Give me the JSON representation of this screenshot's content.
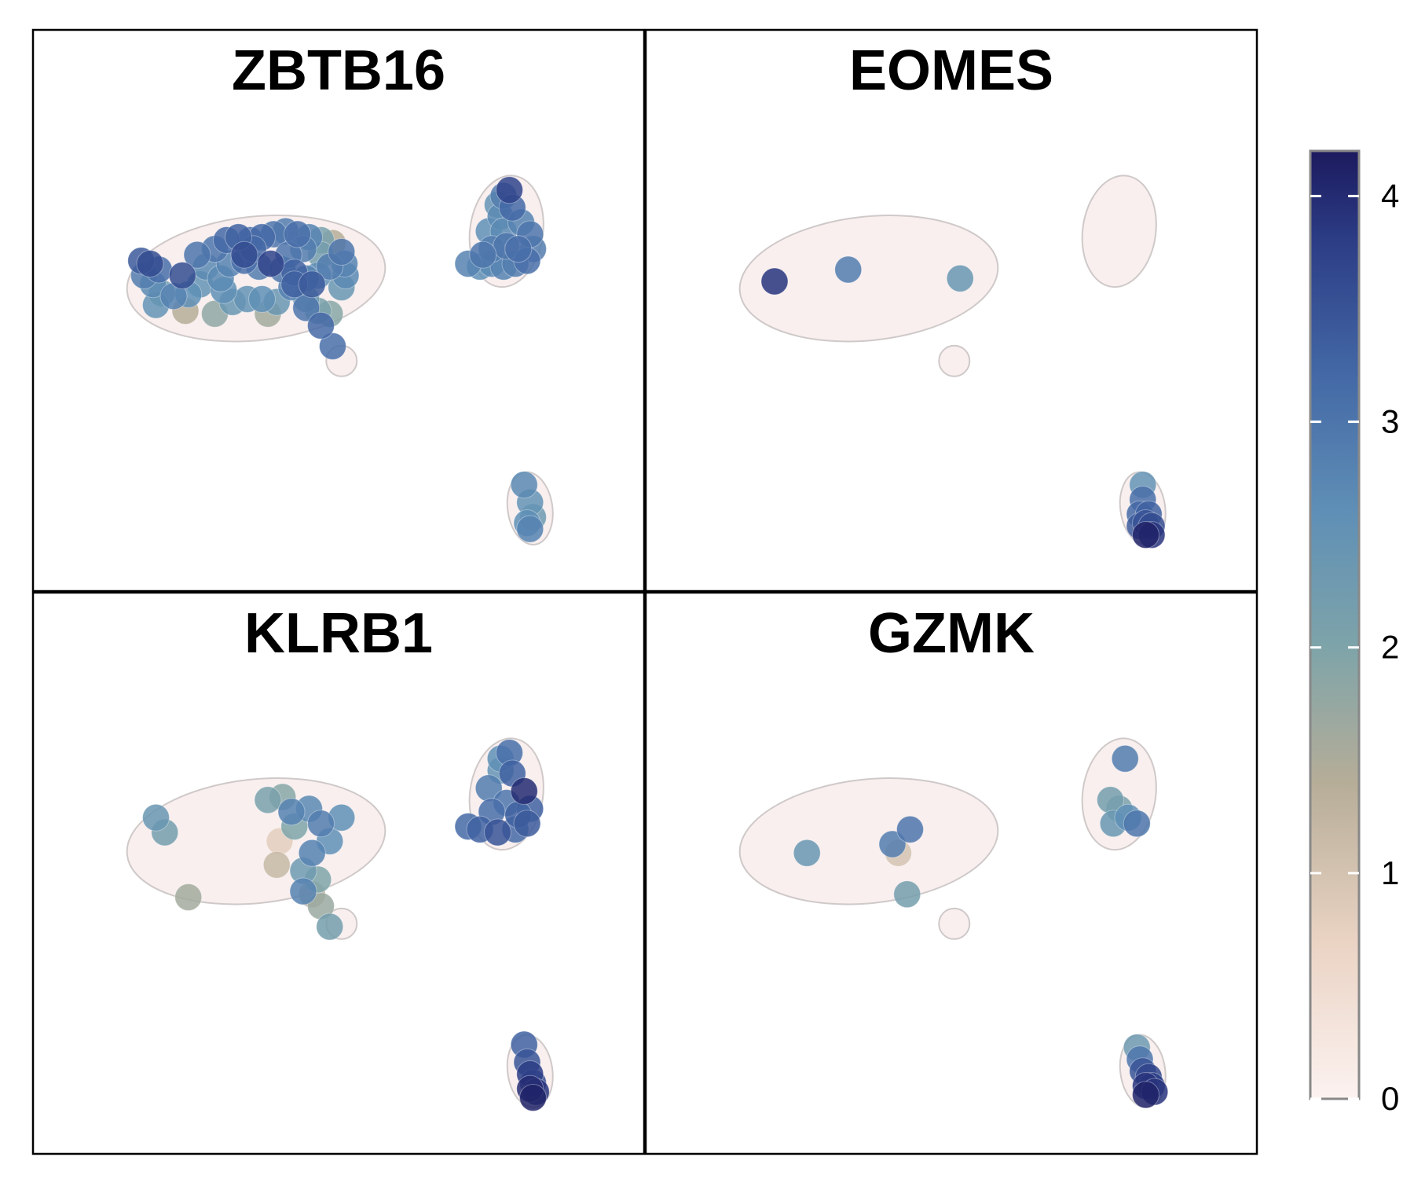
{
  "chart_data": {
    "type": "scatter",
    "description_kind": "feature-plot",
    "panels": [
      {
        "title": "ZBTB16",
        "points": [
          [
            -3.35,
            1.35,
            3.4
          ],
          [
            -3.2,
            1.3,
            3.6
          ],
          [
            -3.3,
            1.1,
            2.9
          ],
          [
            -3.05,
            1.2,
            3.1
          ],
          [
            -3.15,
            0.95,
            2.7
          ],
          [
            -3.0,
            0.8,
            2.3
          ],
          [
            -3.1,
            0.6,
            2.5
          ],
          [
            -2.8,
            0.75,
            2.8
          ],
          [
            -2.55,
            0.78,
            2.6
          ],
          [
            -2.35,
            0.95,
            2.5
          ],
          [
            -2.25,
            1.25,
            2.7
          ],
          [
            -2.1,
            1.55,
            3.0
          ],
          [
            -1.9,
            1.7,
            3.2
          ],
          [
            -1.7,
            1.75,
            3.3
          ],
          [
            -1.5,
            1.7,
            3.1
          ],
          [
            -1.3,
            1.75,
            3.2
          ],
          [
            -1.1,
            1.8,
            3.0
          ],
          [
            -0.9,
            1.85,
            2.9
          ],
          [
            -0.7,
            1.8,
            3.1
          ],
          [
            -0.5,
            1.75,
            2.8
          ],
          [
            -0.3,
            1.7,
            2.1
          ],
          [
            -0.1,
            1.65,
            1.4
          ],
          [
            0.05,
            1.5,
            3.0
          ],
          [
            0.1,
            1.3,
            2.8
          ],
          [
            0.12,
            1.1,
            2.7
          ],
          [
            0.05,
            0.9,
            2.4
          ],
          [
            -0.15,
            1.25,
            2.9
          ],
          [
            -0.35,
            1.1,
            2.6
          ],
          [
            -0.55,
            1.05,
            2.8
          ],
          [
            -0.75,
            1.15,
            3.3
          ],
          [
            -0.95,
            1.2,
            3.0
          ],
          [
            -1.15,
            1.3,
            3.7
          ],
          [
            -1.35,
            1.25,
            2.9
          ],
          [
            -1.6,
            1.35,
            3.1
          ],
          [
            -1.85,
            1.3,
            2.8
          ],
          [
            -2.0,
            1.05,
            2.7
          ],
          [
            -1.95,
            0.85,
            2.6
          ],
          [
            -1.8,
            0.65,
            2.4
          ],
          [
            -1.55,
            0.7,
            2.5
          ],
          [
            -1.3,
            0.7,
            2.6
          ],
          [
            -1.05,
            0.65,
            2.4
          ],
          [
            -0.8,
            0.9,
            2.8
          ],
          [
            -0.55,
            0.7,
            2.3
          ],
          [
            -0.35,
            0.5,
            2.1
          ],
          [
            -0.15,
            0.45,
            1.9
          ],
          [
            -0.3,
            1.45,
            2.2
          ],
          [
            -0.6,
            1.55,
            2.9
          ],
          [
            -1.45,
            1.55,
            3.2
          ],
          [
            -2.4,
            1.45,
            3.0
          ],
          [
            -1.2,
            0.45,
            1.6
          ],
          [
            -2.1,
            0.45,
            1.8
          ],
          [
            -2.6,
            0.5,
            1.4
          ],
          [
            -0.3,
            0.25,
            3.2
          ],
          [
            -0.55,
            0.55,
            3.0
          ],
          [
            -0.1,
            -0.1,
            3.1
          ],
          [
            -0.45,
            0.95,
            3.4
          ],
          [
            -0.75,
            0.95,
            3.3
          ],
          [
            -2.65,
            1.1,
            3.6
          ],
          [
            -1.6,
            1.45,
            3.6
          ],
          [
            -0.85,
            1.45,
            3.0
          ],
          [
            2.9,
            2.55,
            3.7
          ],
          [
            2.95,
            2.25,
            3.2
          ],
          [
            2.8,
            2.45,
            2.9
          ],
          [
            2.75,
            2.1,
            2.7
          ],
          [
            3.1,
            2.0,
            2.8
          ],
          [
            3.25,
            1.8,
            3.0
          ],
          [
            3.3,
            1.55,
            2.9
          ],
          [
            3.2,
            1.35,
            3.1
          ],
          [
            3.0,
            1.3,
            2.9
          ],
          [
            2.8,
            1.25,
            2.8
          ],
          [
            2.6,
            1.3,
            2.7
          ],
          [
            2.4,
            1.25,
            2.6
          ],
          [
            2.2,
            1.3,
            2.8
          ],
          [
            2.6,
            1.55,
            2.9
          ],
          [
            2.85,
            1.6,
            3.0
          ],
          [
            2.55,
            1.85,
            2.6
          ],
          [
            2.8,
            1.85,
            2.7
          ],
          [
            3.05,
            1.55,
            3.1
          ],
          [
            2.7,
            2.3,
            2.5
          ],
          [
            2.45,
            1.45,
            3.0
          ],
          [
            3.15,
            -2.45,
            2.7
          ],
          [
            3.25,
            -2.75,
            2.5
          ],
          [
            3.3,
            -3.0,
            2.3
          ],
          [
            3.2,
            -3.1,
            2.6
          ],
          [
            3.25,
            -3.2,
            2.8
          ]
        ]
      },
      {
        "title": "EOMES",
        "points": [
          [
            -3.0,
            1.0,
            3.9
          ],
          [
            -1.75,
            1.2,
            2.9
          ],
          [
            0.15,
            1.05,
            2.4
          ],
          [
            3.25,
            -2.45,
            2.5
          ],
          [
            3.25,
            -2.7,
            3.1
          ],
          [
            3.2,
            -2.95,
            3.2
          ],
          [
            3.35,
            -2.95,
            3.3
          ],
          [
            3.3,
            -3.1,
            3.5
          ],
          [
            3.2,
            -3.15,
            3.4
          ],
          [
            3.4,
            -3.15,
            3.6
          ],
          [
            3.3,
            -3.3,
            4.1
          ],
          [
            3.4,
            -3.3,
            3.9
          ]
        ]
      },
      {
        "title": "KLRB1",
        "points": [
          [
            -3.1,
            1.45,
            2.4
          ],
          [
            -2.95,
            1.2,
            2.2
          ],
          [
            -1.2,
            1.75,
            2.1
          ],
          [
            -0.95,
            1.8,
            1.9
          ],
          [
            -0.8,
            1.55,
            2.8
          ],
          [
            -0.75,
            1.3,
            2.0
          ],
          [
            -0.5,
            1.6,
            2.7
          ],
          [
            -0.3,
            1.35,
            2.9
          ],
          [
            -0.15,
            1.05,
            2.6
          ],
          [
            -0.45,
            0.85,
            2.8
          ],
          [
            -0.6,
            0.55,
            2.3
          ],
          [
            -0.35,
            0.4,
            2.0
          ],
          [
            -0.6,
            0.2,
            2.8
          ],
          [
            -0.3,
            -0.05,
            1.7
          ],
          [
            -0.15,
            -0.4,
            2.2
          ],
          [
            -1.0,
            1.05,
            0.8
          ],
          [
            -1.05,
            0.65,
            1.2
          ],
          [
            -2.55,
            0.1,
            1.6
          ],
          [
            -0.45,
            0.15,
            1.4
          ],
          [
            0.05,
            1.45,
            2.6
          ],
          [
            2.9,
            2.55,
            3.1
          ],
          [
            2.75,
            2.25,
            2.5
          ],
          [
            2.95,
            2.2,
            3.3
          ],
          [
            3.15,
            1.9,
            4.0
          ],
          [
            3.25,
            1.6,
            3.3
          ],
          [
            3.2,
            1.35,
            3.4
          ],
          [
            3.0,
            1.25,
            3.2
          ],
          [
            2.7,
            1.2,
            3.5
          ],
          [
            2.4,
            1.25,
            3.3
          ],
          [
            2.2,
            1.3,
            3.2
          ],
          [
            2.6,
            1.55,
            3.1
          ],
          [
            2.85,
            1.7,
            3.0
          ],
          [
            2.55,
            1.95,
            2.9
          ],
          [
            2.75,
            2.45,
            2.6
          ],
          [
            3.05,
            1.5,
            3.3
          ],
          [
            3.15,
            -2.4,
            3.3
          ],
          [
            3.2,
            -2.7,
            3.5
          ],
          [
            3.25,
            -2.9,
            3.8
          ],
          [
            3.3,
            -3.05,
            3.6
          ],
          [
            3.25,
            -3.15,
            4.0
          ],
          [
            3.35,
            -3.2,
            3.9
          ],
          [
            3.3,
            -3.3,
            4.1
          ]
        ]
      },
      {
        "title": "GZMK",
        "points": [
          [
            2.95,
            2.45,
            2.9
          ],
          [
            2.7,
            1.75,
            2.2
          ],
          [
            2.85,
            1.6,
            2.1
          ],
          [
            2.75,
            1.35,
            2.4
          ],
          [
            3.0,
            1.45,
            2.6
          ],
          [
            3.15,
            1.35,
            3.0
          ],
          [
            -0.7,
            1.25,
            3.0
          ],
          [
            -1.0,
            1.0,
            2.9
          ],
          [
            -0.9,
            0.85,
            1.0
          ],
          [
            -2.45,
            0.85,
            2.4
          ],
          [
            -0.75,
            0.15,
            2.2
          ],
          [
            3.15,
            -2.45,
            2.3
          ],
          [
            3.2,
            -2.65,
            3.0
          ],
          [
            3.25,
            -2.85,
            3.5
          ],
          [
            3.35,
            -2.95,
            3.7
          ],
          [
            3.3,
            -3.1,
            3.9
          ],
          [
            3.4,
            -3.1,
            3.8
          ],
          [
            3.3,
            -3.25,
            4.1
          ],
          [
            3.45,
            -3.2,
            3.9
          ]
        ]
      }
    ],
    "color_scale": {
      "min": 0,
      "max": 4.2,
      "ticks": [
        0,
        1,
        2,
        3,
        4
      ],
      "tick_labels": [
        "0",
        "1",
        "2",
        "3",
        "4"
      ],
      "stops": [
        {
          "value": 0,
          "color": "#fcf2f0"
        },
        {
          "value": 0.7,
          "color": "#ead3c3"
        },
        {
          "value": 1.4,
          "color": "#b6ad98"
        },
        {
          "value": 2.0,
          "color": "#7ea4a9"
        },
        {
          "value": 2.6,
          "color": "#5f8fb6"
        },
        {
          "value": 3.2,
          "color": "#4469a6"
        },
        {
          "value": 3.8,
          "color": "#2c3d86"
        },
        {
          "value": 4.2,
          "color": "#1c1a5e"
        }
      ]
    },
    "point_style": {
      "outline": "#cfc9c9",
      "background_fill": "#f9efee",
      "opacity": 0.85
    }
  }
}
